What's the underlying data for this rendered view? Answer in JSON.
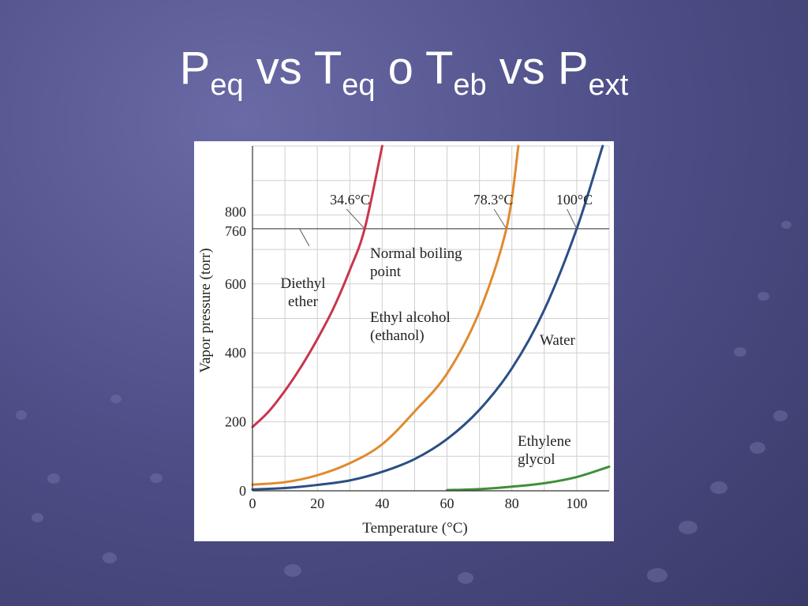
{
  "slide": {
    "title_parts": [
      {
        "text": "P",
        "sub": false
      },
      {
        "text": "eq",
        "sub": true
      },
      {
        "text": " vs T",
        "sub": false
      },
      {
        "text": "eq",
        "sub": true
      },
      {
        "text": " o T",
        "sub": false
      },
      {
        "text": "eb",
        "sub": true
      },
      {
        "text": " vs P",
        "sub": false
      },
      {
        "text": "ext",
        "sub": true
      }
    ]
  },
  "chart_data": {
    "type": "line",
    "title": "",
    "xlabel": "Temperature (°C)",
    "ylabel": "Vapor pressure (torr)",
    "xlim": [
      0,
      110
    ],
    "ylim": [
      0,
      1000
    ],
    "xticks": [
      0,
      20,
      40,
      60,
      80,
      100
    ],
    "yticks": [
      0,
      200,
      400,
      600,
      760,
      800
    ],
    "grid": true,
    "series": [
      {
        "name": "Diethyl ether",
        "color": "#c8364d",
        "x": [
          0,
          5,
          10,
          15,
          20,
          25,
          30,
          34.6,
          40
        ],
        "y": [
          185,
          230,
          290,
          360,
          440,
          530,
          640,
          760,
          1000
        ]
      },
      {
        "name": "Ethyl alcohol (ethanol)",
        "color": "#e08a2e",
        "x": [
          0,
          10,
          20,
          30,
          40,
          50,
          60,
          70,
          78.3,
          82
        ],
        "y": [
          18,
          25,
          45,
          80,
          135,
          230,
          340,
          520,
          760,
          1000
        ]
      },
      {
        "name": "Water",
        "color": "#2a4f85",
        "x": [
          0,
          10,
          20,
          30,
          40,
          50,
          60,
          70,
          80,
          90,
          100,
          108
        ],
        "y": [
          4,
          8,
          17,
          30,
          55,
          92,
          150,
          235,
          355,
          525,
          760,
          1000
        ]
      },
      {
        "name": "Ethylene glycol",
        "color": "#3f8f3a",
        "x": [
          60,
          70,
          80,
          90,
          100,
          110
        ],
        "y": [
          2,
          5,
          12,
          22,
          40,
          70
        ]
      }
    ],
    "reference_line": {
      "y": 760,
      "label_lines": [
        "Normal boiling",
        "point"
      ]
    },
    "annotations": [
      {
        "text": "34.6°C",
        "x": 34.6
      },
      {
        "text": "78.3°C",
        "x": 78.3
      },
      {
        "text": "100°C",
        "x": 100
      }
    ],
    "series_labels": [
      {
        "series": 0,
        "lines": [
          "Diethyl",
          "ether"
        ]
      },
      {
        "series": 1,
        "lines": [
          "Ethyl alcohol",
          "(ethanol)"
        ]
      },
      {
        "series": 2,
        "lines": [
          "Water"
        ]
      },
      {
        "series": 3,
        "lines": [
          "Ethylene",
          "glycol"
        ]
      }
    ]
  }
}
